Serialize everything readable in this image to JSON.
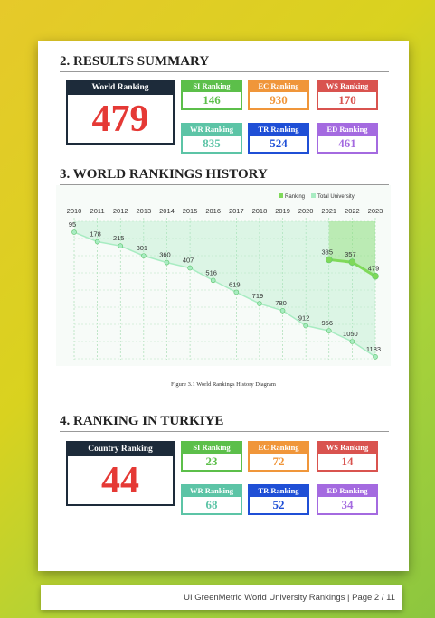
{
  "results_summary": {
    "title": "2. RESULTS SUMMARY",
    "main": {
      "label": "World Ranking",
      "value": "479"
    },
    "items": [
      {
        "label": "SI Ranking",
        "value": "146",
        "color": "#5cbf4a"
      },
      {
        "label": "EC Ranking",
        "value": "930",
        "color": "#f0963a"
      },
      {
        "label": "WS Ranking",
        "value": "170",
        "color": "#d9534f"
      },
      {
        "label": "WR Ranking",
        "value": "835",
        "color": "#5cc4a6"
      },
      {
        "label": "TR Ranking",
        "value": "524",
        "color": "#1f4fd6"
      },
      {
        "label": "ED Ranking",
        "value": "461",
        "color": "#a46ae0"
      }
    ]
  },
  "history": {
    "title": "3. WORLD RANKINGS HISTORY",
    "caption": "Figure 3.1 World Rankings History Diagram"
  },
  "chart_data": {
    "type": "line",
    "categories": [
      "2010",
      "2011",
      "2012",
      "2013",
      "2014",
      "2015",
      "2016",
      "2017",
      "2018",
      "2019",
      "2020",
      "2021",
      "2022",
      "2023"
    ],
    "series": [
      {
        "name": "Ranking",
        "color": "#7fd95a",
        "values": [
          null,
          null,
          null,
          null,
          null,
          null,
          null,
          null,
          null,
          null,
          null,
          335,
          357,
          479
        ]
      },
      {
        "name": "Total University",
        "color": "#a8ecc2",
        "values": [
          95,
          178,
          215,
          301,
          360,
          407,
          516,
          619,
          719,
          780,
          912,
          956,
          1050,
          1183
        ]
      }
    ],
    "ylim": [
      1200,
      0
    ],
    "grid": true
  },
  "ranking_turkey": {
    "title": "4. RANKING IN TURKIYE",
    "main": {
      "label": "Country Ranking",
      "value": "44"
    },
    "items": [
      {
        "label": "SI Ranking",
        "value": "23",
        "color": "#5cbf4a"
      },
      {
        "label": "EC Ranking",
        "value": "72",
        "color": "#f0963a"
      },
      {
        "label": "WS Ranking",
        "value": "14",
        "color": "#d9534f"
      },
      {
        "label": "WR Ranking",
        "value": "68",
        "color": "#5cc4a6"
      },
      {
        "label": "TR Ranking",
        "value": "52",
        "color": "#1f4fd6"
      },
      {
        "label": "ED Ranking",
        "value": "34",
        "color": "#a46ae0"
      }
    ]
  },
  "footer": "UI GreenMetric World University Rankings | Page 2 / 11"
}
